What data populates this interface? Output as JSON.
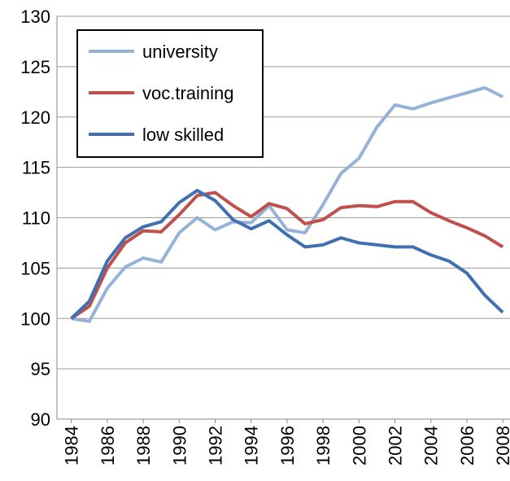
{
  "chart_data": {
    "type": "line",
    "x": [
      1984,
      1985,
      1986,
      1987,
      1988,
      1989,
      1990,
      1991,
      1992,
      1993,
      1994,
      1995,
      1996,
      1997,
      1998,
      1999,
      2000,
      2001,
      2002,
      2003,
      2004,
      2005,
      2006,
      2007,
      2008
    ],
    "series": [
      {
        "name": "university",
        "color": "#95b3d7",
        "values": [
          100,
          99.7,
          103.0,
          105.1,
          106.0,
          105.6,
          108.5,
          110.0,
          108.8,
          109.6,
          109.5,
          111.2,
          108.8,
          108.5,
          111.3,
          114.4,
          115.9,
          119.0,
          121.2,
          120.8,
          121.4,
          121.9,
          122.4,
          122.9,
          122.0
        ]
      },
      {
        "name": "voc.training",
        "color": "#c0504d",
        "values": [
          100,
          101.2,
          105.0,
          107.5,
          108.7,
          108.6,
          110.3,
          112.2,
          112.5,
          111.2,
          110.1,
          111.4,
          110.9,
          109.4,
          109.8,
          111.0,
          111.2,
          111.1,
          111.6,
          111.6,
          110.5,
          109.7,
          109.0,
          108.2,
          107.1
        ]
      },
      {
        "name": "low skilled",
        "color": "#4170b0",
        "values": [
          100,
          101.7,
          105.7,
          108.0,
          109.1,
          109.6,
          111.5,
          112.7,
          111.7,
          109.8,
          108.9,
          109.7,
          108.3,
          107.1,
          107.3,
          108.0,
          107.5,
          107.3,
          107.1,
          107.1,
          106.3,
          105.7,
          104.5,
          102.3,
          100.6
        ]
      }
    ],
    "xlim": [
      1983.2,
      2008.4
    ],
    "xticks": [
      1984,
      1986,
      1988,
      1990,
      1992,
      1994,
      1996,
      1998,
      2000,
      2002,
      2004,
      2006,
      2008
    ],
    "ylim": [
      90,
      130
    ],
    "yticks": [
      90,
      95,
      100,
      105,
      110,
      115,
      120,
      125,
      130
    ],
    "grid": true,
    "legend": "upper-left"
  }
}
